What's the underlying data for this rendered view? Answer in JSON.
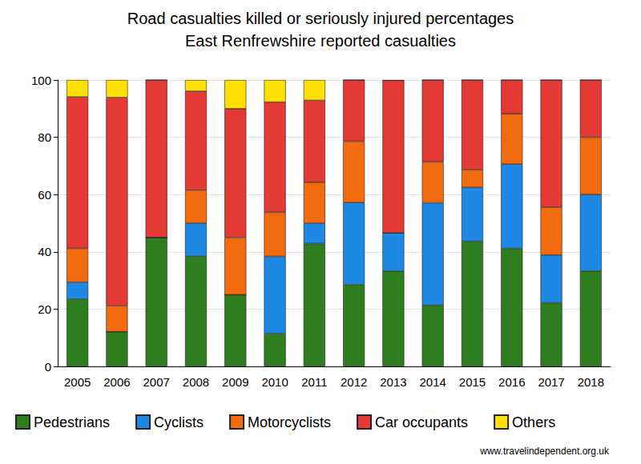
{
  "chart_data": {
    "type": "bar",
    "title": "Road casualties killed or seriously injured percentages",
    "subtitle": "East Renfrewshire reported casualties",
    "source": "www.travelindependent.org.uk",
    "categories": [
      "2005",
      "2006",
      "2007",
      "2008",
      "2009",
      "2010",
      "2011",
      "2012",
      "2013",
      "2014",
      "2015",
      "2016",
      "2017",
      "2018"
    ],
    "series": [
      {
        "name": "Pedestrians",
        "color": "#2e7d1f",
        "values": [
          23.5,
          12.1,
          45,
          38.5,
          25,
          11.5,
          42.9,
          28.6,
          33.3,
          21.4,
          43.7,
          41.2,
          22.2,
          33.3
        ]
      },
      {
        "name": "Cyclists",
        "color": "#1e88e5",
        "values": [
          5.9,
          0,
          0,
          11.5,
          0,
          26.9,
          7.1,
          28.6,
          13.3,
          35.7,
          18.8,
          29.4,
          16.7,
          26.7
        ]
      },
      {
        "name": "Motorcyclists",
        "color": "#f26b0f",
        "values": [
          11.8,
          9.1,
          0,
          11.5,
          20,
          15.4,
          14.3,
          21.4,
          0,
          14.3,
          6.2,
          17.6,
          16.7,
          20
        ]
      },
      {
        "name": "Car occupants",
        "color": "#e53935",
        "values": [
          52.9,
          72.7,
          55,
          34.6,
          45,
          38.5,
          28.6,
          21.4,
          53.3,
          28.6,
          31.3,
          11.8,
          44.4,
          20
        ]
      },
      {
        "name": "Others",
        "color": "#ffe000",
        "values": [
          5.9,
          6.1,
          0,
          3.9,
          10,
          7.7,
          7.1,
          0,
          0,
          0,
          0,
          0,
          0,
          0
        ]
      }
    ],
    "ylim": [
      0,
      100
    ],
    "yticks": [
      0,
      20,
      40,
      60,
      80,
      100
    ],
    "grid": true,
    "stacked": true,
    "legend": "bottom"
  }
}
